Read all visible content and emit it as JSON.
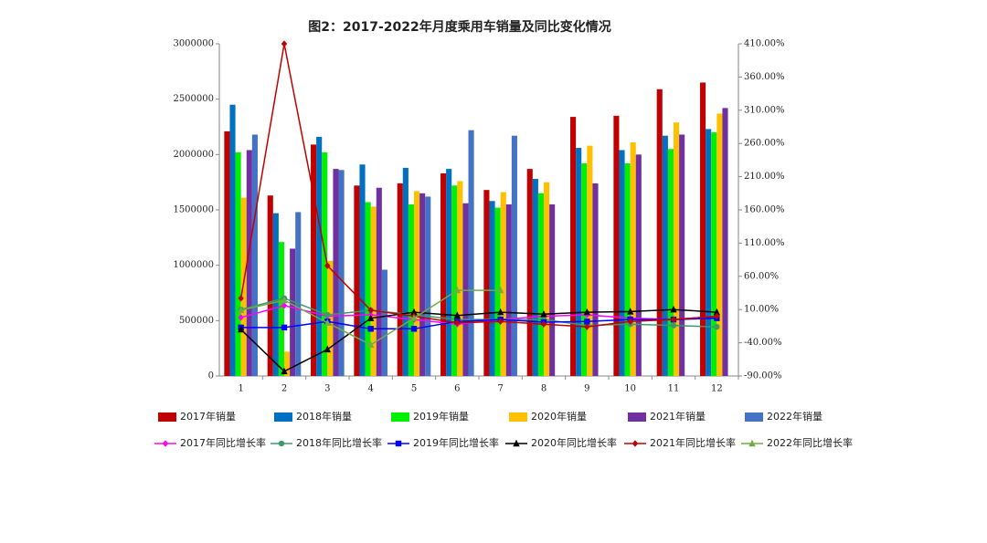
{
  "chart_data": {
    "type": "bar",
    "title": "图2：2017-2022年月度乘用车销量及同比变化情况",
    "categories": [
      "1",
      "2",
      "3",
      "4",
      "5",
      "6",
      "7",
      "8",
      "9",
      "10",
      "11",
      "12"
    ],
    "ylim": [
      0,
      3000000
    ],
    "yticks": [
      0,
      500000,
      1000000,
      1500000,
      2000000,
      2500000,
      3000000
    ],
    "y2lim": [
      -90,
      410
    ],
    "y2ticks": [
      {
        "value": -90,
        "label": "-90.00%"
      },
      {
        "value": -40,
        "label": "-40.00%"
      },
      {
        "value": 10,
        "label": "10.00%"
      },
      {
        "value": 60,
        "label": "60.00%"
      },
      {
        "value": 110,
        "label": "110.00%"
      },
      {
        "value": 160,
        "label": "160.00%"
      },
      {
        "value": 210,
        "label": "210.00%"
      },
      {
        "value": 260,
        "label": "260.00%"
      },
      {
        "value": 310,
        "label": "310.00%"
      },
      {
        "value": 360,
        "label": "360.00%"
      },
      {
        "value": 410,
        "label": "410.00%"
      }
    ],
    "series": [
      {
        "name": "2017年销量",
        "type": "bar",
        "color": "#c00000",
        "values": [
          2210000,
          1630000,
          2090000,
          1720000,
          1740000,
          1830000,
          1680000,
          1870000,
          2340000,
          2350000,
          2590000,
          2650000
        ]
      },
      {
        "name": "2018年销量",
        "type": "bar",
        "color": "#0070c0",
        "values": [
          2450000,
          1470000,
          2160000,
          1910000,
          1880000,
          1870000,
          1580000,
          1780000,
          2060000,
          2040000,
          2170000,
          2230000
        ]
      },
      {
        "name": "2019年销量",
        "type": "bar",
        "color": "#00f000",
        "values": [
          2020000,
          1210000,
          2020000,
          1570000,
          1550000,
          1720000,
          1520000,
          1650000,
          1920000,
          1920000,
          2050000,
          2200000
        ]
      },
      {
        "name": "2020年销量",
        "type": "bar",
        "color": "#ffc000",
        "values": [
          1610000,
          220000,
          1040000,
          1530000,
          1670000,
          1760000,
          1660000,
          1750000,
          2080000,
          2110000,
          2290000,
          2370000
        ]
      },
      {
        "name": "2021年销量",
        "type": "bar",
        "color": "#7030a0",
        "values": [
          2040000,
          1150000,
          1870000,
          1700000,
          1650000,
          1560000,
          1550000,
          1550000,
          1740000,
          2000000,
          2180000,
          2420000
        ]
      },
      {
        "name": "2022年销量",
        "type": "bar",
        "color": "#4472c4",
        "values": [
          2180000,
          1480000,
          1860000,
          960000,
          1620000,
          2220000,
          2170000,
          null,
          null,
          null,
          null,
          null
        ]
      },
      {
        "name": "2017年同比增长率",
        "type": "line",
        "axis": "y2",
        "marker": "diamond",
        "color": "#ff00ff",
        "values": [
          -2,
          16,
          0,
          2,
          -5,
          -12,
          -5,
          0,
          2,
          -3,
          -5,
          0
        ]
      },
      {
        "name": "2018年同比增长率",
        "type": "line",
        "axis": "y2",
        "marker": "circle",
        "color": "#3c9a6a",
        "values": [
          10,
          27,
          2,
          9,
          2,
          -5,
          -5,
          -5,
          -14,
          -12,
          -14,
          -16
        ]
      },
      {
        "name": "2019年同比增长率",
        "type": "line",
        "axis": "y2",
        "marker": "square",
        "color": "#0000ff",
        "values": [
          -17,
          -17,
          -8,
          -19,
          -19,
          -8,
          -5,
          -9,
          -8,
          -5,
          -5,
          -3
        ]
      },
      {
        "name": "2020年同比增长率",
        "type": "line",
        "axis": "y2",
        "marker": "triangle",
        "color": "#000000",
        "values": [
          -20,
          -83,
          -50,
          -3,
          6,
          1,
          6,
          3,
          6,
          7,
          10,
          6
        ]
      },
      {
        "name": "2021年同比增长率",
        "type": "line",
        "axis": "y2",
        "marker": "diamond",
        "color": "#c00000",
        "values": [
          27,
          410,
          76,
          9,
          0,
          -10,
          -8,
          -12,
          -16,
          -8,
          -5,
          0
        ]
      },
      {
        "name": "2022年同比增长率",
        "type": "line",
        "axis": "y2",
        "marker": "triangle",
        "color": "#70ad47",
        "values": [
          9,
          24,
          -10,
          -43,
          -3,
          39,
          39,
          null,
          null,
          null,
          null,
          null
        ]
      }
    ]
  }
}
